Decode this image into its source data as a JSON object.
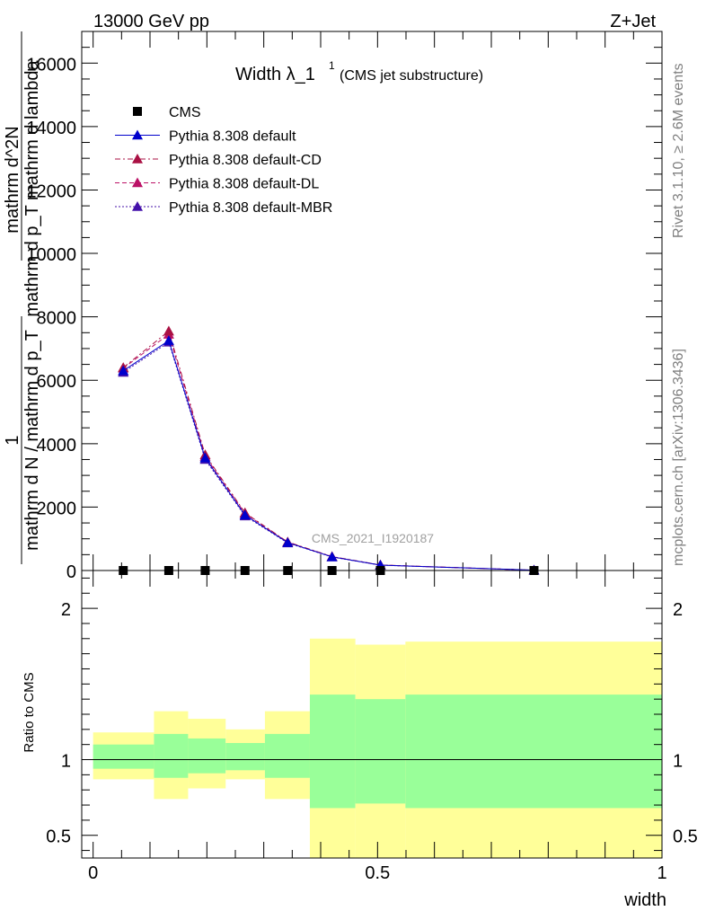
{
  "header": {
    "left": "13000 GeV pp",
    "right": "Z+Jet"
  },
  "side_labels": {
    "rivet": "Rivet 3.1.10, ≥ 2.6M events",
    "mcplots": "mcplots.cern.ch [arXiv:1306.3436]"
  },
  "watermark": "CMS_2021_I1920187",
  "chart_data": [
    {
      "type": "line",
      "title": "Width λ_1",
      "title_sup": "1",
      "subtitle": "(CMS jet substructure)",
      "xlabel": "width",
      "ylabel_numerator": "1",
      "ylabel_denominator": "mathrm d N / mathrm d p_T",
      "ylabel_fraction_num": "mathrm d^2N",
      "ylabel_fraction_den": "mathrm d p_T mathrm d lambda",
      "xlim": [
        -0.02,
        1.0
      ],
      "ylim": [
        0,
        17000
      ],
      "yticks": [
        0,
        2000,
        4000,
        6000,
        8000,
        10000,
        12000,
        14000,
        16000
      ],
      "xticks": [
        0,
        0.5,
        1
      ],
      "legend_position": "top-left",
      "x": [
        0.053,
        0.133,
        0.197,
        0.267,
        0.342,
        0.42,
        0.505,
        0.775
      ],
      "series": [
        {
          "name": "CMS",
          "color": "#000000",
          "marker": "square",
          "line": "none",
          "values": [
            0,
            0,
            0,
            0,
            0,
            0,
            0,
            0
          ]
        },
        {
          "name": "Pythia 8.308 default",
          "color": "#0000cc",
          "marker": "triangle",
          "line": "solid",
          "values": [
            6300,
            7250,
            3550,
            1750,
            880,
            430,
            170,
            10
          ]
        },
        {
          "name": "Pythia 8.308 default-CD",
          "color": "#aa1144",
          "marker": "triangle",
          "line": "dashdot",
          "values": [
            6400,
            7550,
            3650,
            1820,
            900,
            440,
            175,
            10
          ]
        },
        {
          "name": "Pythia 8.308 default-DL",
          "color": "#bb1166",
          "marker": "triangle",
          "line": "dashed",
          "values": [
            6380,
            7450,
            3600,
            1800,
            890,
            435,
            172,
            10
          ]
        },
        {
          "name": "Pythia 8.308 default-MBR",
          "color": "#4411aa",
          "marker": "triangle",
          "line": "dotted",
          "values": [
            6250,
            7200,
            3500,
            1720,
            870,
            425,
            168,
            10
          ]
        }
      ]
    },
    {
      "type": "area",
      "ylabel": "Ratio to CMS",
      "xlabel": "width",
      "xlim": [
        -0.02,
        1.0
      ],
      "ylim": [
        0.35,
        2.25
      ],
      "yticks": [
        0.5,
        1,
        2
      ],
      "xticks": [
        0,
        0.5,
        1
      ],
      "reference_line": 1,
      "bins": [
        {
          "lo": 0.0,
          "hi": 0.107,
          "inner": [
            0.94,
            1.1
          ],
          "outer": [
            0.87,
            1.18
          ]
        },
        {
          "lo": 0.107,
          "hi": 0.167,
          "inner": [
            0.88,
            1.17
          ],
          "outer": [
            0.74,
            1.32
          ]
        },
        {
          "lo": 0.167,
          "hi": 0.233,
          "inner": [
            0.91,
            1.14
          ],
          "outer": [
            0.81,
            1.27
          ]
        },
        {
          "lo": 0.233,
          "hi": 0.302,
          "inner": [
            0.93,
            1.11
          ],
          "outer": [
            0.87,
            1.2
          ]
        },
        {
          "lo": 0.302,
          "hi": 0.381,
          "inner": [
            0.88,
            1.17
          ],
          "outer": [
            0.74,
            1.32
          ]
        },
        {
          "lo": 0.381,
          "hi": 0.461,
          "inner": [
            0.68,
            1.43
          ],
          "outer": [
            0.35,
            1.8
          ]
        },
        {
          "lo": 0.461,
          "hi": 0.549,
          "inner": [
            0.71,
            1.4
          ],
          "outer": [
            0.35,
            1.76
          ]
        },
        {
          "lo": 0.549,
          "hi": 1.0,
          "inner": [
            0.68,
            1.43
          ],
          "outer": [
            0.35,
            1.78
          ]
        }
      ],
      "band_colors": {
        "inner": "#99ff99",
        "outer": "#ffff99"
      }
    }
  ]
}
